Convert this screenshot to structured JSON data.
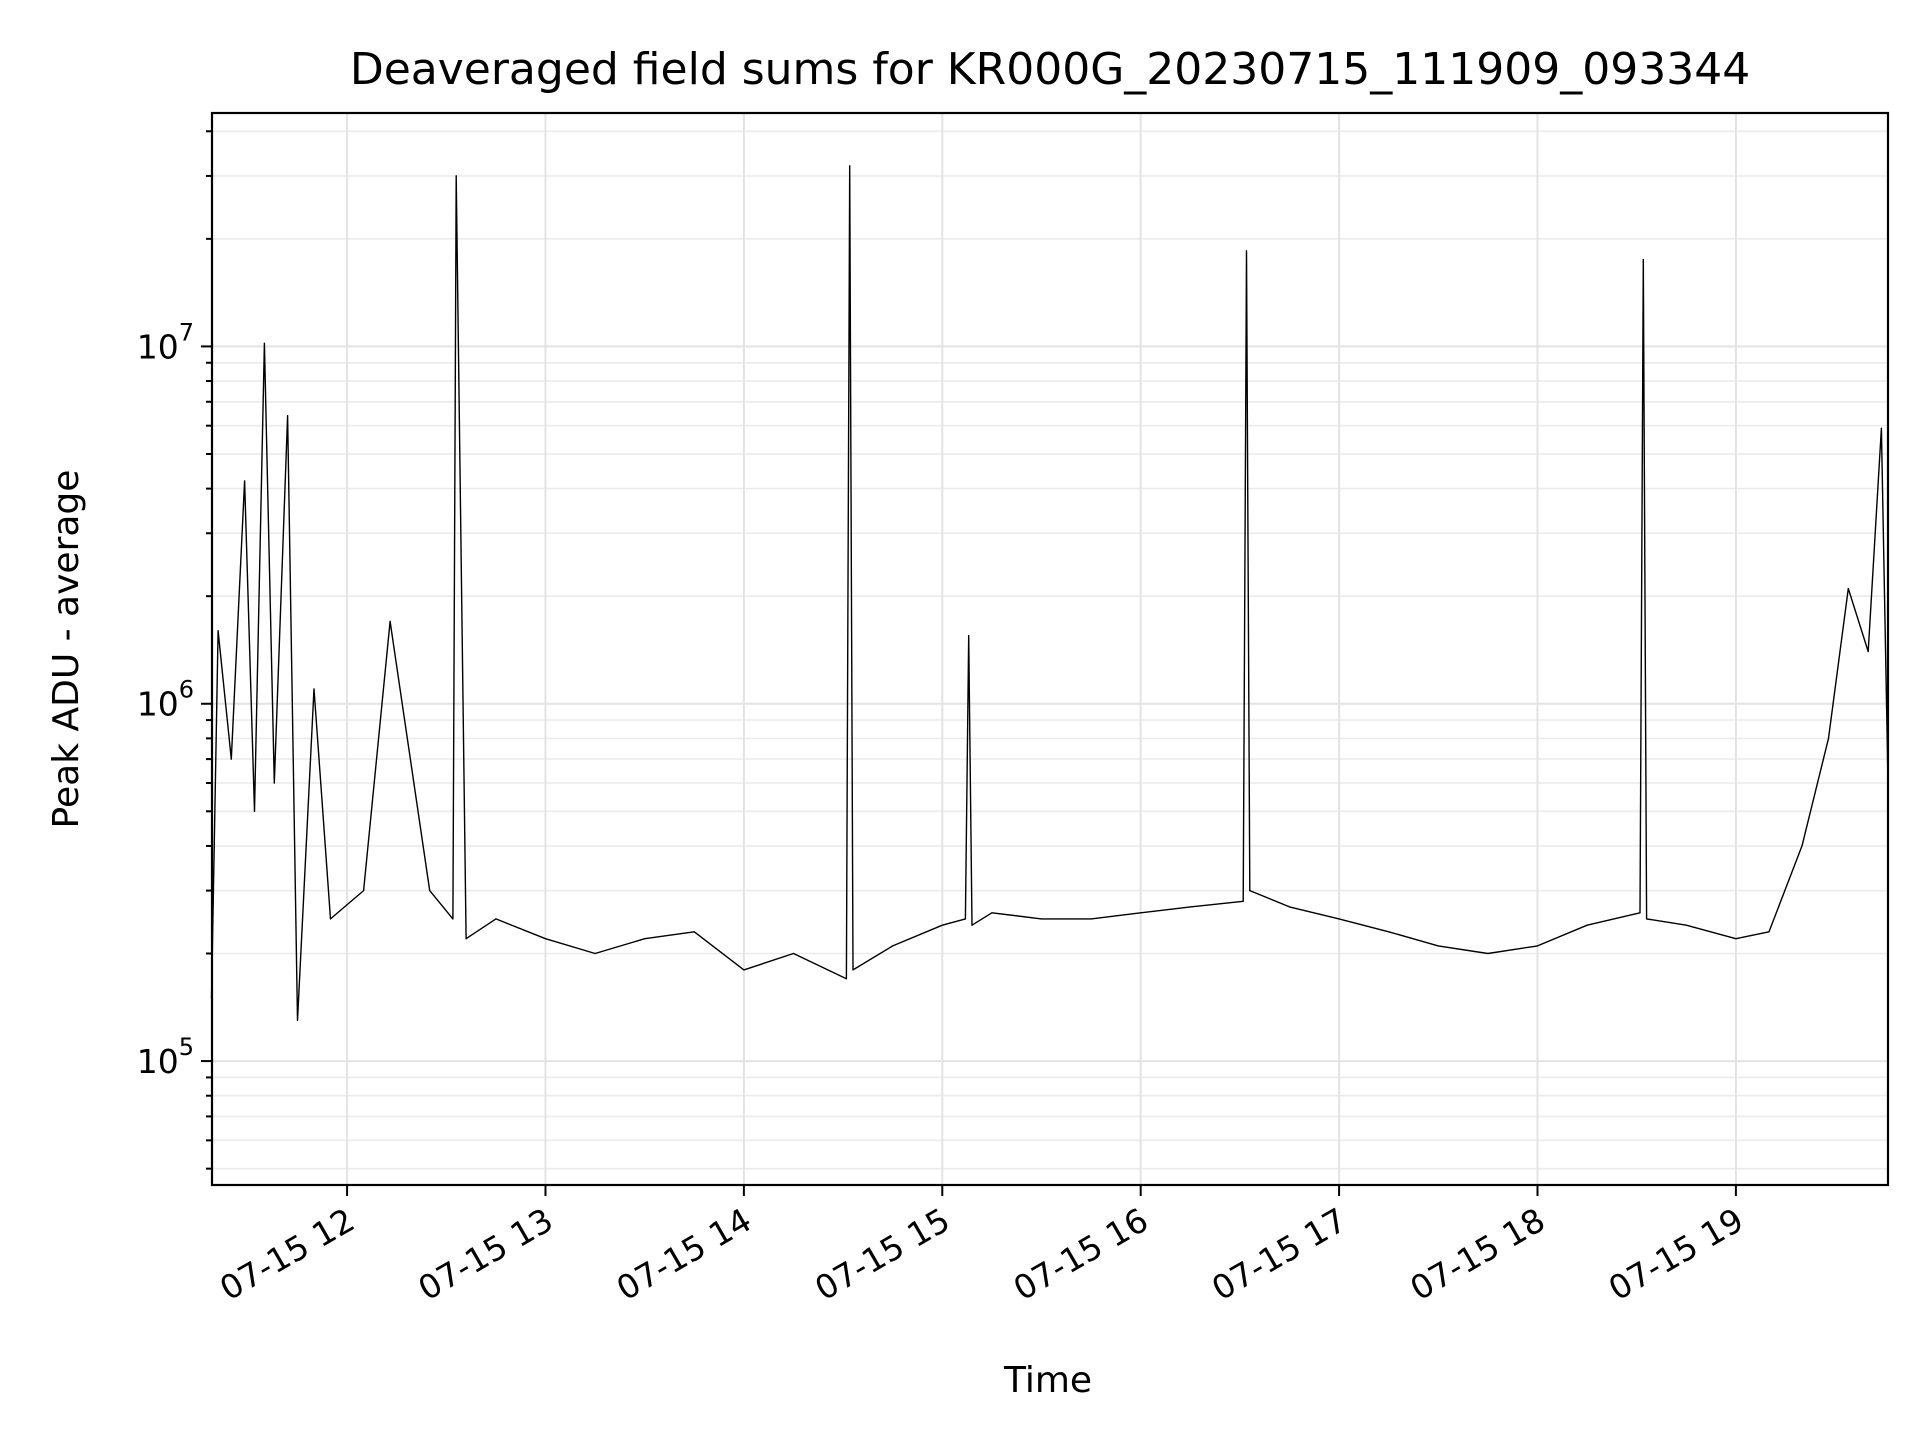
{
  "chart_data": {
    "type": "line",
    "title": "Deaveraged field sums for KR000G_20230715_111909_093344",
    "xlabel": "Time",
    "ylabel": "Peak ADU - average",
    "x_scale": "time",
    "y_scale": "log",
    "xlim": [
      "2023-07-15 11:19:09",
      "2023-07-15 19:46:00"
    ],
    "ylim": [
      45000,
      45000000
    ],
    "grid": true,
    "x_ticks": [
      "07-15 12",
      "07-15 13",
      "07-15 14",
      "07-15 15",
      "07-15 16",
      "07-15 17",
      "07-15 18",
      "07-15 19"
    ],
    "y_ticks": [
      {
        "value": 100000,
        "base": "10",
        "exp": "5"
      },
      {
        "value": 1000000,
        "base": "10",
        "exp": "6"
      },
      {
        "value": 10000000,
        "base": "10",
        "exp": "7"
      }
    ],
    "series": [
      {
        "color": "#000000",
        "x": [
          "2023-07-15 11:19",
          "2023-07-15 11:21",
          "2023-07-15 11:25",
          "2023-07-15 11:29",
          "2023-07-15 11:32",
          "2023-07-15 11:35",
          "2023-07-15 11:38",
          "2023-07-15 11:42",
          "2023-07-15 11:45",
          "2023-07-15 11:50",
          "2023-07-15 11:55",
          "2023-07-15 12:05",
          "2023-07-15 12:13",
          "2023-07-15 12:25",
          "2023-07-15 12:32",
          "2023-07-15 12:33",
          "2023-07-15 12:36",
          "2023-07-15 12:45",
          "2023-07-15 13:00",
          "2023-07-15 13:15",
          "2023-07-15 13:30",
          "2023-07-15 13:45",
          "2023-07-15 14:00",
          "2023-07-15 14:15",
          "2023-07-15 14:31",
          "2023-07-15 14:32",
          "2023-07-15 14:33",
          "2023-07-15 14:45",
          "2023-07-15 15:00",
          "2023-07-15 15:07",
          "2023-07-15 15:08",
          "2023-07-15 15:09",
          "2023-07-15 15:15",
          "2023-07-15 15:30",
          "2023-07-15 15:45",
          "2023-07-15 16:00",
          "2023-07-15 16:15",
          "2023-07-15 16:31",
          "2023-07-15 16:32",
          "2023-07-15 16:33",
          "2023-07-15 16:45",
          "2023-07-15 17:00",
          "2023-07-15 17:15",
          "2023-07-15 17:30",
          "2023-07-15 17:45",
          "2023-07-15 18:00",
          "2023-07-15 18:15",
          "2023-07-15 18:31",
          "2023-07-15 18:32",
          "2023-07-15 18:33",
          "2023-07-15 18:45",
          "2023-07-15 19:00",
          "2023-07-15 19:10",
          "2023-07-15 19:20",
          "2023-07-15 19:28",
          "2023-07-15 19:34",
          "2023-07-15 19:40",
          "2023-07-15 19:44",
          "2023-07-15 19:46"
        ],
        "y": [
          150000,
          1600000,
          700000,
          4200000,
          500000,
          10200000,
          600000,
          6400000,
          130000,
          1100000,
          250000,
          300000,
          1700000,
          300000,
          250000,
          30000000,
          220000,
          250000,
          220000,
          200000,
          220000,
          230000,
          180000,
          200000,
          170000,
          32000000,
          180000,
          210000,
          240000,
          250000,
          1550000,
          240000,
          260000,
          250000,
          250000,
          260000,
          270000,
          280000,
          18500000,
          300000,
          270000,
          250000,
          230000,
          210000,
          200000,
          210000,
          240000,
          260000,
          17500000,
          250000,
          240000,
          220000,
          230000,
          400000,
          800000,
          2100000,
          1400000,
          5900000,
          600000
        ]
      }
    ]
  }
}
